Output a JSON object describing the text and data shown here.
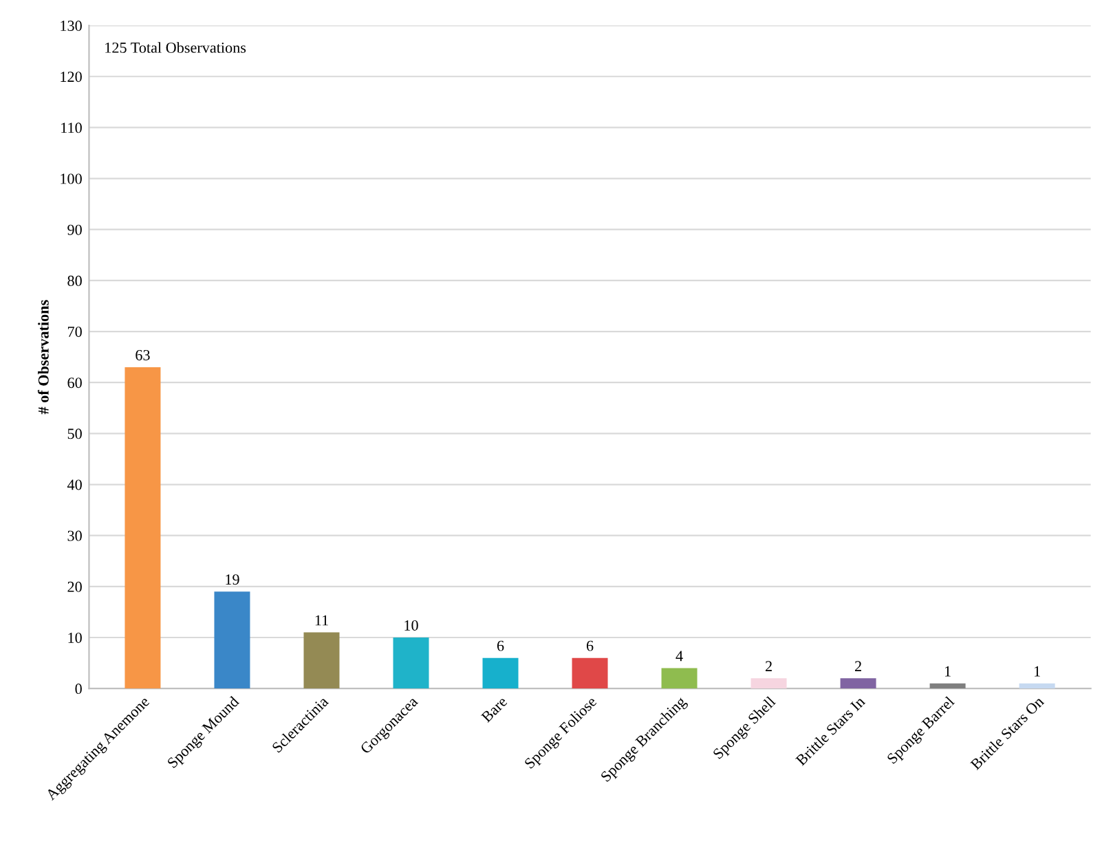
{
  "chart_data": {
    "type": "bar",
    "ylabel": "# of Observations",
    "categories": [
      "Aggregating Anemone",
      "Sponge Mound",
      "Scleractinia",
      "Gorgonacea",
      "Bare",
      "Sponge Foliose",
      "Sponge Branching",
      "Sponge Shell",
      "Brittle Stars In",
      "Sponge Barrel",
      "Brittle Stars On"
    ],
    "values": [
      63,
      19,
      11,
      10,
      6,
      6,
      4,
      2,
      2,
      1,
      1
    ],
    "colors": [
      "#f79646",
      "#3a87c8",
      "#948a54",
      "#1fb3c9",
      "#17b0cc",
      "#e04848",
      "#8fbc4f",
      "#f6d5e0",
      "#8064a2",
      "#7f7f7f",
      "#c6d9f1"
    ],
    "ylim": [
      0,
      130
    ],
    "yticks": [
      0,
      10,
      20,
      30,
      40,
      50,
      60,
      70,
      80,
      90,
      100,
      110,
      120,
      130
    ],
    "grid": "y",
    "data_labels": true,
    "annotations": [
      "125 Total Observations"
    ]
  }
}
